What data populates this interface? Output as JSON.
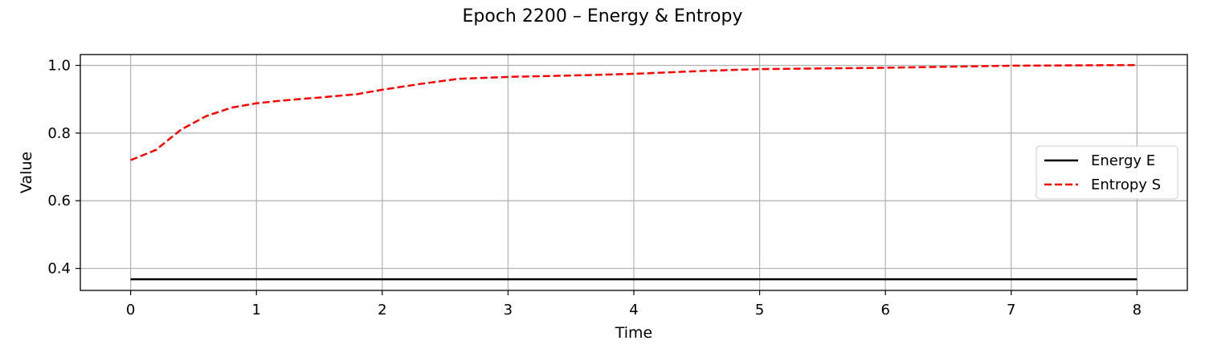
{
  "chart_data": {
    "type": "line",
    "title": "Epoch 2200 – Energy & Entropy",
    "xlabel": "Time",
    "ylabel": "Value",
    "xlim": [
      -0.4,
      8.4
    ],
    "ylim": [
      0.335,
      1.032
    ],
    "xticks": [
      0,
      1,
      2,
      3,
      4,
      5,
      6,
      7,
      8
    ],
    "yticks": [
      0.4,
      0.6,
      0.8,
      1.0
    ],
    "ytick_labels": [
      "0.4",
      "0.6",
      "0.8",
      "1.0"
    ],
    "grid": true,
    "legend_position": "center-right",
    "series": [
      {
        "name": "Energy E",
        "color": "#000000",
        "style": "solid",
        "x": [
          0,
          1,
          2,
          3,
          4,
          5,
          6,
          7,
          8
        ],
        "y": [
          0.368,
          0.368,
          0.368,
          0.368,
          0.368,
          0.368,
          0.368,
          0.368,
          0.368
        ]
      },
      {
        "name": "Entropy S",
        "color": "#ff0000",
        "style": "dashed",
        "x": [
          0,
          0.2,
          0.4,
          0.6,
          0.8,
          1.0,
          1.2,
          1.5,
          1.8,
          2.0,
          2.3,
          2.6,
          3.0,
          3.5,
          4.0,
          4.5,
          5.0,
          5.5,
          6.0,
          6.5,
          7.0,
          7.5,
          8.0
        ],
        "y": [
          0.72,
          0.75,
          0.81,
          0.85,
          0.875,
          0.888,
          0.896,
          0.905,
          0.915,
          0.928,
          0.945,
          0.96,
          0.966,
          0.97,
          0.975,
          0.983,
          0.989,
          0.991,
          0.993,
          0.996,
          0.999,
          1.0,
          1.001
        ]
      }
    ]
  }
}
